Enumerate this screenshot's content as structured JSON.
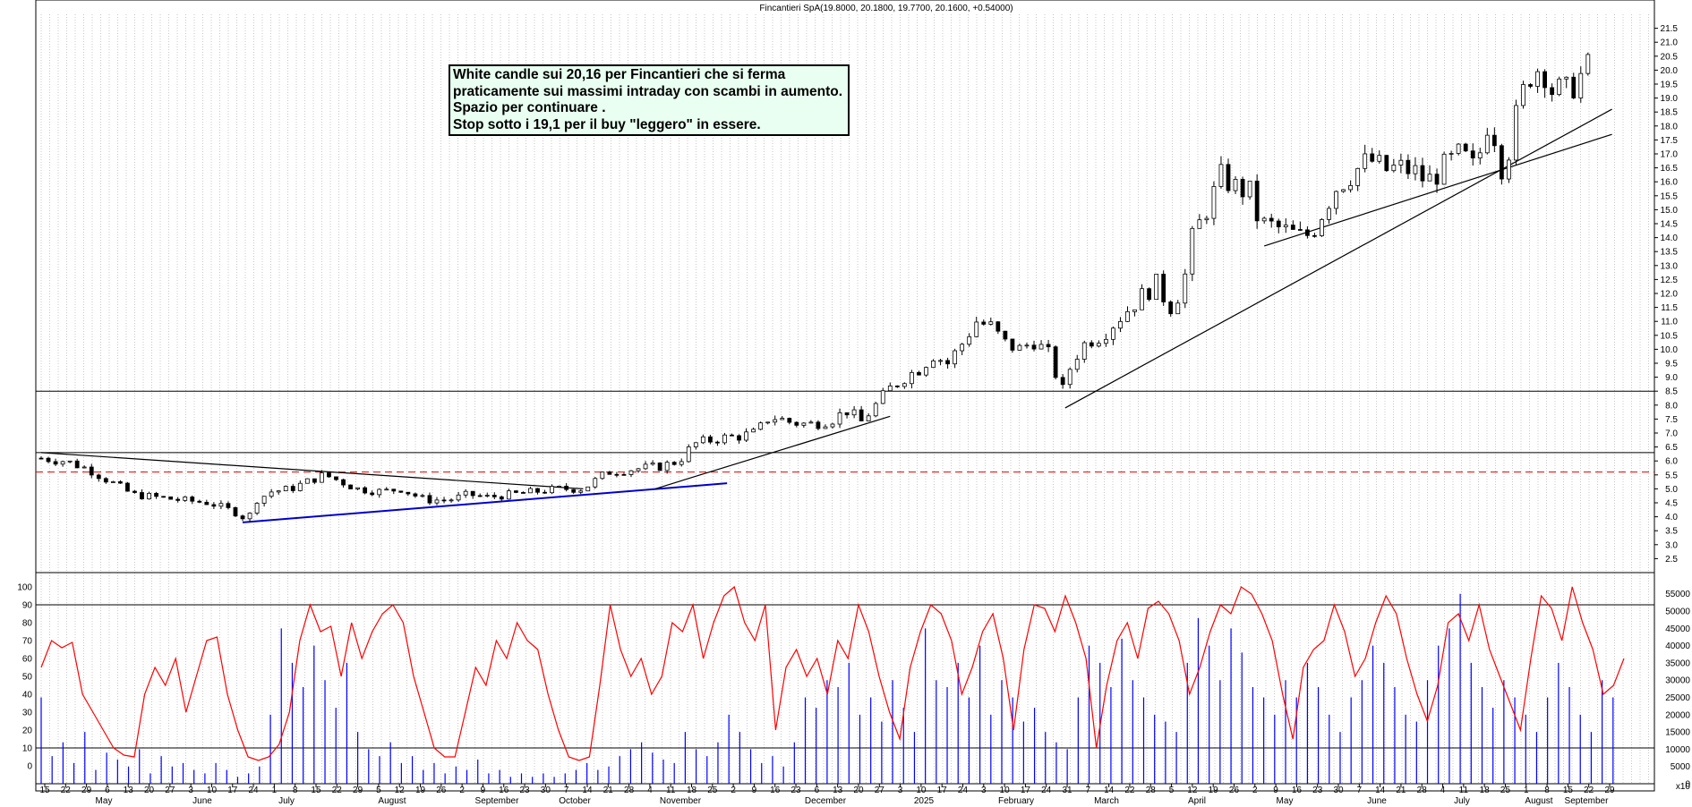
{
  "title": "Fincantieri SpA(19.8000, 20.1800, 19.7700, 20.1600, +0.54000)",
  "annotation": {
    "lines": [
      "White candle sui 20,16 per Fincantieri che si ferma",
      "praticamente sui massimi intraday con scambi in aumento.",
      "Spazio per continuare .",
      "Stop sotto i 19,1 per il buy \"leggero\" in essere."
    ]
  },
  "chart_data": [
    {
      "type": "candlestick",
      "title": "Fincantieri SpA(19.8000, 20.1800, 19.7700, 20.1600, +0.54000)",
      "ylim": [
        2.0,
        22.0
      ],
      "y_ticks": [
        "2.5",
        "3.0",
        "3.5",
        "4.0",
        "4.5",
        "5.0",
        "5.5",
        "6.0",
        "6.5",
        "7.0",
        "7.5",
        "8.0",
        "8.5",
        "9.0",
        "9.5",
        "10.0",
        "10.5",
        "11.0",
        "11.5",
        "12.0",
        "12.5",
        "13.0",
        "13.5",
        "14.0",
        "14.5",
        "15.0",
        "15.5",
        "16.0",
        "16.5",
        "17.0",
        "17.5",
        "18.0",
        "18.5",
        "19.0",
        "19.5",
        "20.0",
        "20.5",
        "21.0",
        "21.5"
      ],
      "grid": true,
      "close_path": [
        [
          0,
          6.1
        ],
        [
          10,
          6.0
        ],
        [
          20,
          5.7
        ],
        [
          28,
          5.3
        ],
        [
          38,
          4.8
        ],
        [
          48,
          4.7
        ],
        [
          58,
          4.6
        ],
        [
          70,
          4.5
        ],
        [
          80,
          4.2
        ],
        [
          86,
          3.9
        ],
        [
          90,
          4.6
        ],
        [
          96,
          4.9
        ],
        [
          104,
          5.0
        ],
        [
          112,
          5.3
        ],
        [
          118,
          5.5
        ],
        [
          124,
          5.3
        ],
        [
          132,
          5.0
        ],
        [
          142,
          4.9
        ],
        [
          150,
          5.0
        ],
        [
          160,
          4.6
        ],
        [
          170,
          4.6
        ],
        [
          178,
          4.8
        ],
        [
          186,
          4.7
        ],
        [
          196,
          4.8
        ],
        [
          206,
          4.9
        ],
        [
          216,
          5.0
        ],
        [
          226,
          5.0
        ],
        [
          236,
          5.6
        ],
        [
          246,
          5.7
        ],
        [
          258,
          5.8
        ],
        [
          266,
          6.0
        ],
        [
          272,
          6.6
        ],
        [
          282,
          6.8
        ],
        [
          292,
          6.9
        ],
        [
          298,
          7.0
        ],
        [
          304,
          7.6
        ],
        [
          312,
          7.4
        ],
        [
          320,
          7.3
        ],
        [
          330,
          7.5
        ],
        [
          336,
          7.8
        ],
        [
          342,
          7.4
        ],
        [
          348,
          8.0
        ],
        [
          354,
          8.6
        ],
        [
          360,
          9.0
        ],
        [
          366,
          9.3
        ],
        [
          372,
          9.8
        ],
        [
          378,
          9.5
        ],
        [
          384,
          10.2
        ],
        [
          390,
          11.0
        ],
        [
          396,
          10.8
        ],
        [
          402,
          10.2
        ],
        [
          408,
          10.0
        ],
        [
          414,
          10.3
        ],
        [
          420,
          9.8
        ],
        [
          426,
          8.5
        ],
        [
          430,
          9.6
        ],
        [
          436,
          10.3
        ],
        [
          442,
          10.5
        ],
        [
          448,
          11.0
        ],
        [
          454,
          11.5
        ],
        [
          460,
          12.0
        ],
        [
          466,
          12.4
        ],
        [
          470,
          11.4
        ],
        [
          476,
          12.2
        ],
        [
          480,
          14.0
        ],
        [
          486,
          15.0
        ],
        [
          492,
          16.2
        ],
        [
          498,
          15.8
        ],
        [
          504,
          15.6
        ],
        [
          508,
          14.5
        ],
        [
          514,
          14.4
        ],
        [
          520,
          14.2
        ],
        [
          526,
          14.0
        ],
        [
          530,
          14.2
        ],
        [
          536,
          15.2
        ],
        [
          540,
          15.8
        ],
        [
          548,
          16.4
        ],
        [
          554,
          16.8
        ],
        [
          560,
          16.4
        ],
        [
          566,
          16.5
        ],
        [
          572,
          16.4
        ],
        [
          578,
          16.0
        ],
        [
          586,
          16.6
        ],
        [
          592,
          17.0
        ],
        [
          598,
          16.4
        ],
        [
          604,
          18.4
        ],
        [
          610,
          16.3
        ],
        [
          614,
          18.0
        ],
        [
          620,
          19.8
        ],
        [
          626,
          20.2
        ],
        [
          630,
          19.3
        ],
        [
          636,
          19.2
        ],
        [
          640,
          19.6
        ],
        [
          646,
          20.16
        ]
      ],
      "horizontal_levels": [
        8.5,
        6.3,
        5.6
      ],
      "dashed_level": 5.6,
      "trend_lines": [
        {
          "color": "#000000",
          "from": [
            0,
            6.3
          ],
          "to": [
            226,
            5.0
          ]
        },
        {
          "color": "#0000cc",
          "from": [
            84,
            3.8
          ],
          "to": [
            286,
            5.2
          ]
        },
        {
          "color": "#000000",
          "from": [
            256,
            5.0
          ],
          "to": [
            354,
            7.6
          ]
        },
        {
          "color": "#000000",
          "from": [
            427,
            7.9
          ],
          "to": [
            655,
            18.6
          ]
        },
        {
          "color": "#000000",
          "from": [
            510,
            13.7
          ],
          "to": [
            655,
            17.7
          ]
        }
      ],
      "x_labels_top": [
        "15",
        "22",
        "29",
        "6",
        "13",
        "20",
        "27",
        "3",
        "10",
        "17",
        "24",
        "1",
        "8",
        "15",
        "22",
        "29",
        "5",
        "12",
        "19",
        "26",
        "2",
        "9",
        "16",
        "23",
        "30",
        "7",
        "14",
        "21",
        "28",
        "4",
        "11",
        "18",
        "25",
        "2",
        "9",
        "16",
        "23",
        "6",
        "13",
        "20",
        "27",
        "3",
        "10",
        "17",
        "24",
        "3",
        "10",
        "17",
        "24",
        "31",
        "7",
        "14",
        "22",
        "28",
        "5",
        "12",
        "19",
        "26",
        "2",
        "9",
        "16",
        "23",
        "30",
        "7",
        "14",
        "21",
        "28",
        "4",
        "11",
        "18",
        "25",
        "1",
        "8",
        "15",
        "22",
        "29"
      ],
      "x_labels_bottom": [
        "May",
        "June",
        "July",
        "August",
        "September",
        "October",
        "November",
        "December",
        "2025",
        "February",
        "March",
        "April",
        "May",
        "June",
        "July",
        "August",
        "September"
      ]
    },
    {
      "type": "line",
      "series": [
        {
          "name": "",
          "color": "#ff0000",
          "values": [
            55,
            70,
            66,
            69,
            40,
            30,
            20,
            10,
            6,
            5,
            40,
            55,
            45,
            60,
            30,
            50,
            70,
            72,
            40,
            20,
            5,
            3,
            5,
            12,
            30,
            70,
            90,
            75,
            78,
            50,
            80,
            60,
            75,
            85,
            90,
            80,
            50,
            30,
            10,
            5,
            5,
            30,
            55,
            45,
            70,
            60,
            80,
            70,
            65,
            40,
            20,
            5,
            3,
            5,
            45,
            90,
            65,
            50,
            60,
            40,
            50,
            80,
            75,
            90,
            60,
            80,
            95,
            100,
            80,
            70,
            90,
            20,
            55,
            65,
            50,
            60,
            40,
            70,
            60,
            90,
            75,
            50,
            30,
            15,
            55,
            75,
            90,
            85,
            70,
            40,
            55,
            75,
            85,
            60,
            20,
            65,
            90,
            88,
            75,
            95,
            80,
            60,
            10,
            45,
            70,
            80,
            60,
            88,
            92,
            85,
            70,
            40,
            55,
            75,
            90,
            85,
            100,
            96,
            85,
            70,
            40,
            15,
            55,
            65,
            70,
            90,
            75,
            50,
            60,
            80,
            95,
            85,
            60,
            40,
            25,
            45,
            80,
            85,
            70,
            90,
            65,
            50,
            35,
            20,
            60,
            95,
            88,
            70,
            100,
            80,
            65,
            40,
            45,
            60
          ]
        }
      ],
      "ylim": [
        -10,
        100
      ],
      "y_ticks": [
        "0",
        "10",
        "20",
        "30",
        "40",
        "50",
        "60",
        "70",
        "80",
        "90",
        "100"
      ],
      "levels": [
        10,
        90
      ]
    },
    {
      "type": "bar",
      "series": [
        {
          "name": "",
          "color": "#0000ff",
          "values": [
            25,
            8,
            12,
            6,
            15,
            4,
            9,
            7,
            5,
            10,
            3,
            8,
            5,
            6,
            4,
            3,
            6,
            4,
            2,
            3,
            5,
            20,
            45,
            35,
            28,
            40,
            30,
            22,
            35,
            15,
            10,
            8,
            12,
            6,
            8,
            4,
            6,
            3,
            5,
            4,
            7,
            3,
            4,
            2,
            3,
            2,
            3,
            2,
            3,
            4,
            6,
            4,
            5,
            8,
            10,
            12,
            9,
            7,
            6,
            15,
            10,
            8,
            12,
            20,
            15,
            10,
            6,
            8,
            5,
            12,
            25,
            22,
            30,
            28,
            35,
            20,
            25,
            18,
            30,
            22,
            15,
            45,
            30,
            28,
            35,
            25,
            40,
            20,
            30,
            25,
            18,
            22,
            15,
            12,
            10,
            25,
            40,
            35,
            28,
            42,
            30,
            25,
            20,
            18,
            15,
            35,
            48,
            40,
            30,
            45,
            38,
            28,
            25,
            20,
            30,
            25,
            35,
            28,
            20,
            15,
            25,
            30,
            40,
            35,
            28,
            20,
            18,
            30,
            40,
            45,
            55,
            35,
            28,
            22,
            30,
            25,
            20,
            15,
            25,
            35,
            28,
            20,
            15,
            30,
            25
          ]
        }
      ],
      "y_ticks": [
        "0",
        "5000",
        "10000",
        "15000",
        "20000",
        "25000",
        "30000",
        "35000",
        "40000",
        "45000",
        "50000",
        "55000"
      ],
      "ylim": [
        0,
        57000
      ],
      "axis_unit": "x10"
    }
  ]
}
